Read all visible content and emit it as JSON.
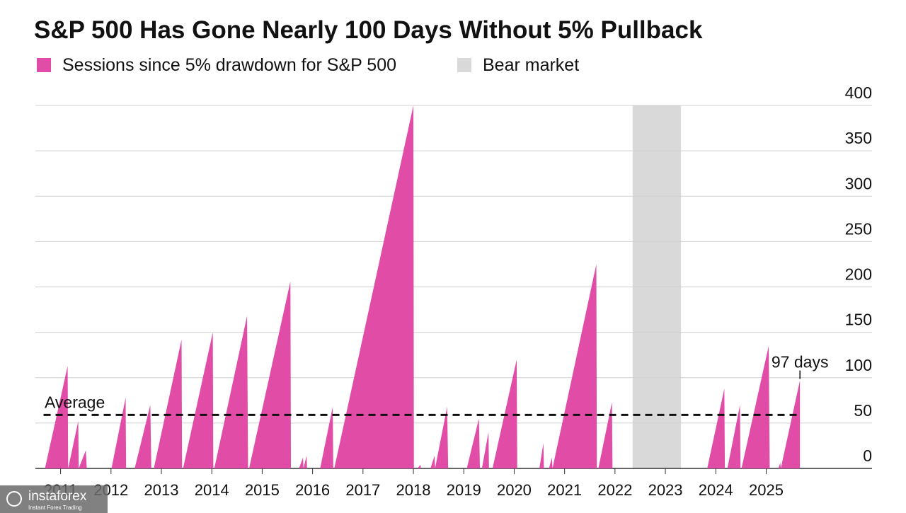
{
  "chart_data": {
    "type": "area",
    "title": "S&P 500 Has Gone Nearly 100 Days Without 5% Pullback",
    "series": [
      {
        "name": "Sessions since 5% drawdown for S&P 500",
        "color": "#e14ca6",
        "x": [
          2010.69,
          2011.14,
          2011.15,
          2011.35,
          2011.36,
          2011.5,
          2011.52,
          2012.01,
          2012.29,
          2012.3,
          2012.47,
          2012.78,
          2012.8,
          2012.85,
          2013.4,
          2013.41,
          2013.43,
          2014.02,
          2014.03,
          2014.05,
          2014.7,
          2014.72,
          2014.74,
          2015.56,
          2015.57,
          2015.73,
          2015.81,
          2015.82,
          2015.88,
          2015.89,
          2016.15,
          2016.4,
          2016.41,
          2016.43,
          2018.0,
          2018.01,
          2018.08,
          2018.14,
          2018.15,
          2018.34,
          2018.42,
          2018.43,
          2018.67,
          2018.69,
          2019.06,
          2019.3,
          2019.32,
          2019.36,
          2019.49,
          2019.5,
          2019.57,
          2020.05,
          2020.06,
          2020.5,
          2020.58,
          2020.59,
          2020.69,
          2020.75,
          2020.76,
          2021.63,
          2021.64,
          2021.67,
          2021.94,
          2021.95,
          2023.83,
          2024.17,
          2024.18,
          2024.23,
          2024.48,
          2024.49,
          2024.51,
          2025.05,
          2025.07,
          2025.24,
          2025.28,
          2025.29,
          2025.67
        ],
        "values": [
          0,
          113,
          0,
          52,
          0,
          20,
          0,
          0,
          78,
          0,
          0,
          70,
          0,
          0,
          142,
          0,
          0,
          150,
          0,
          0,
          168,
          0,
          0,
          206,
          0,
          0,
          12,
          0,
          14,
          0,
          0,
          68,
          0,
          0,
          400,
          0,
          0,
          4,
          0,
          0,
          14,
          0,
          68,
          0,
          0,
          55,
          0,
          0,
          40,
          0,
          0,
          120,
          0,
          0,
          28,
          0,
          0,
          12,
          0,
          225,
          0,
          0,
          73,
          0,
          0,
          88,
          0,
          0,
          70,
          0,
          0,
          135,
          0,
          0,
          6,
          0,
          97
        ]
      }
    ],
    "bear_market": {
      "name": "Bear market",
      "color": "#d9d9d9",
      "x": [
        2022.35,
        2023.31
      ]
    },
    "average": {
      "label": "Average",
      "value": 59
    },
    "annotation": {
      "text": "97 days"
    },
    "xlim": [
      2010.5,
      2027.1
    ],
    "xticks": [
      2011,
      2012,
      2013,
      2014,
      2015,
      2016,
      2017,
      2018,
      2019,
      2020,
      2021,
      2022,
      2023,
      2024,
      2025
    ],
    "ylim": [
      0,
      400
    ],
    "yticks": [
      0,
      50,
      100,
      150,
      200,
      250,
      300,
      350,
      400
    ],
    "grid": true,
    "watermark": {
      "brand": "instaforex",
      "tagline": "Instant Forex Trading"
    }
  }
}
